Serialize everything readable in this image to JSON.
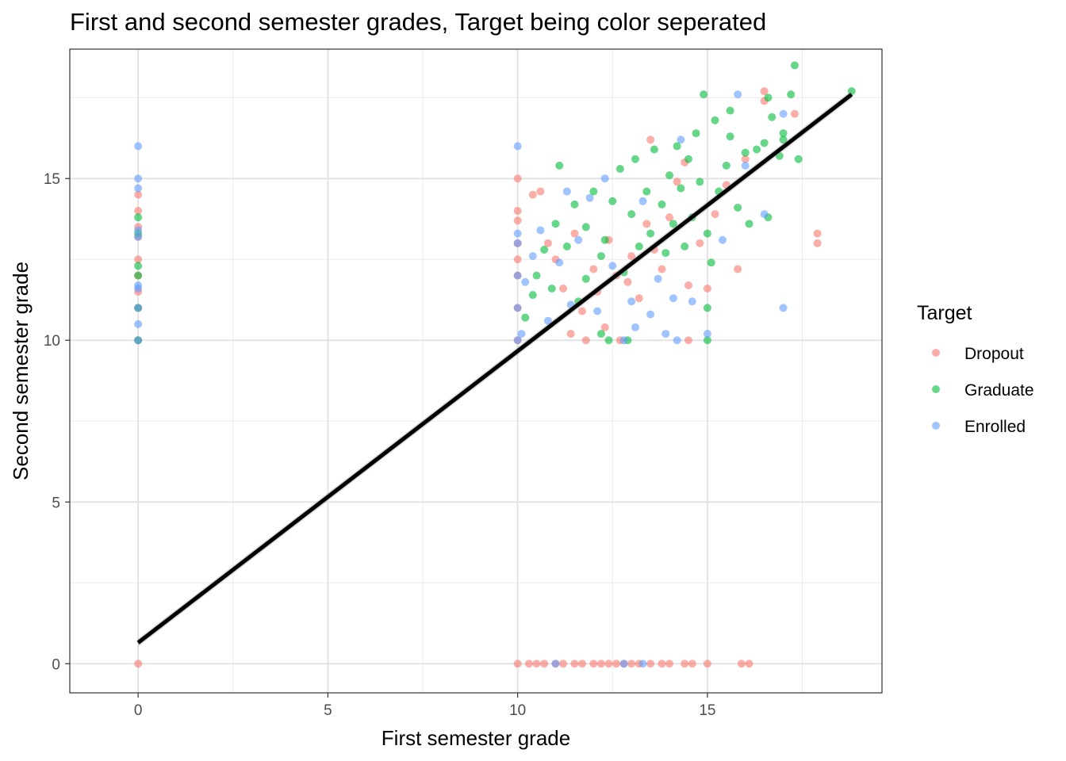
{
  "chart_data": {
    "type": "scatter",
    "title": "First and second semester grades, Target being color seperated",
    "xlabel": "First semester grade",
    "ylabel": "Second semester grade",
    "xlim": [
      -1.8,
      19.6
    ],
    "ylim": [
      -0.9,
      19.0
    ],
    "x_ticks": [
      0,
      5,
      10,
      15
    ],
    "y_ticks": [
      0,
      5,
      10,
      15
    ],
    "grid": true,
    "legend": {
      "title": "Target",
      "position": "right"
    },
    "trend_line": {
      "x": [
        0,
        18.8
      ],
      "y": [
        0.65,
        17.6
      ],
      "color": "#000000"
    },
    "series": [
      {
        "name": "Dropout",
        "color": "#F8766D",
        "points": [
          [
            0,
            0
          ],
          [
            0,
            10
          ],
          [
            0,
            11
          ],
          [
            0,
            11.5
          ],
          [
            0,
            12
          ],
          [
            0,
            12.5
          ],
          [
            0,
            13.2
          ],
          [
            0,
            13.5
          ],
          [
            0,
            14
          ],
          [
            0,
            14.5
          ],
          [
            10,
            0
          ],
          [
            10.3,
            0
          ],
          [
            10.5,
            0
          ],
          [
            10.7,
            0
          ],
          [
            11,
            0
          ],
          [
            11.2,
            0
          ],
          [
            11.5,
            0
          ],
          [
            11.7,
            0
          ],
          [
            12,
            0
          ],
          [
            12.2,
            0
          ],
          [
            12.4,
            0
          ],
          [
            12.6,
            0
          ],
          [
            12.8,
            0
          ],
          [
            13,
            0
          ],
          [
            13.2,
            0
          ],
          [
            13.5,
            0
          ],
          [
            13.8,
            0
          ],
          [
            14,
            0
          ],
          [
            14.4,
            0
          ],
          [
            14.6,
            0
          ],
          [
            15,
            0
          ],
          [
            15.9,
            0
          ],
          [
            16.1,
            0
          ],
          [
            10,
            10
          ],
          [
            10,
            11
          ],
          [
            10,
            12
          ],
          [
            10,
            12.5
          ],
          [
            10,
            13
          ],
          [
            10,
            13.7
          ],
          [
            10,
            14
          ],
          [
            10,
            15
          ],
          [
            10.4,
            14.5
          ],
          [
            10.6,
            14.6
          ],
          [
            10.8,
            13
          ],
          [
            11,
            12.5
          ],
          [
            11.2,
            11.6
          ],
          [
            11.4,
            10.2
          ],
          [
            11.5,
            13.3
          ],
          [
            11.7,
            10.9
          ],
          [
            11.8,
            10
          ],
          [
            12,
            12.2
          ],
          [
            12.1,
            11.5
          ],
          [
            12.3,
            10.4
          ],
          [
            12.4,
            13.1
          ],
          [
            12.6,
            12
          ],
          [
            12.7,
            10
          ],
          [
            12.9,
            11.8
          ],
          [
            13,
            12.6
          ],
          [
            13.2,
            11.3
          ],
          [
            13.4,
            13.6
          ],
          [
            13.5,
            16.2
          ],
          [
            13.6,
            12.8
          ],
          [
            13.8,
            12.2
          ],
          [
            14,
            13.8
          ],
          [
            14.2,
            14.9
          ],
          [
            14.4,
            15.5
          ],
          [
            14.5,
            11.7
          ],
          [
            14.5,
            10
          ],
          [
            14.8,
            13
          ],
          [
            15,
            11.6
          ],
          [
            15.2,
            13.9
          ],
          [
            15.5,
            14.8
          ],
          [
            15.8,
            12.2
          ],
          [
            16,
            15.6
          ],
          [
            16.5,
            17.7
          ],
          [
            16.5,
            17.4
          ],
          [
            17.3,
            17
          ],
          [
            17.9,
            13.3
          ],
          [
            17.9,
            13
          ]
        ]
      },
      {
        "name": "Graduate",
        "color": "#00BA38",
        "points": [
          [
            0,
            11
          ],
          [
            0,
            12
          ],
          [
            0,
            12.3
          ],
          [
            0,
            13.3
          ],
          [
            0,
            13.8
          ],
          [
            0,
            10
          ],
          [
            10.2,
            10.7
          ],
          [
            10.4,
            11.4
          ],
          [
            10.5,
            12
          ],
          [
            10.7,
            12.8
          ],
          [
            10.9,
            11.6
          ],
          [
            11,
            13.6
          ],
          [
            11.1,
            15.4
          ],
          [
            11.3,
            12.9
          ],
          [
            11.5,
            14.2
          ],
          [
            11.6,
            11.2
          ],
          [
            11.8,
            13.5
          ],
          [
            12,
            14.6
          ],
          [
            12.2,
            12.6
          ],
          [
            12.3,
            13.1
          ],
          [
            12.4,
            10
          ],
          [
            12.5,
            14.3
          ],
          [
            12.7,
            15.3
          ],
          [
            12.8,
            12.1
          ],
          [
            13,
            13.9
          ],
          [
            13.1,
            15.6
          ],
          [
            13.2,
            12.9
          ],
          [
            13.4,
            14.6
          ],
          [
            13.5,
            13.3
          ],
          [
            13.6,
            15.9
          ],
          [
            13.8,
            14.2
          ],
          [
            13.9,
            12.7
          ],
          [
            14,
            15.1
          ],
          [
            14.1,
            13.6
          ],
          [
            14.2,
            16
          ],
          [
            14.3,
            14.7
          ],
          [
            14.4,
            12.9
          ],
          [
            14.5,
            15.6
          ],
          [
            14.6,
            13.8
          ],
          [
            14.7,
            16.4
          ],
          [
            14.8,
            14.9
          ],
          [
            14.9,
            17.6
          ],
          [
            15,
            13.3
          ],
          [
            15,
            10
          ],
          [
            15,
            11
          ],
          [
            15.2,
            16.8
          ],
          [
            15.3,
            14.6
          ],
          [
            15.5,
            15.4
          ],
          [
            15.6,
            16.3
          ],
          [
            15.8,
            14.1
          ],
          [
            16,
            15.8
          ],
          [
            16.1,
            13.6
          ],
          [
            16.3,
            15.9
          ],
          [
            16.5,
            16.1
          ],
          [
            16.6,
            13.8
          ],
          [
            16.7,
            16.9
          ],
          [
            16.9,
            15.7
          ],
          [
            17,
            16.4
          ],
          [
            17.2,
            17.6
          ],
          [
            17.4,
            15.6
          ],
          [
            17.3,
            18.5
          ],
          [
            18.8,
            17.7
          ],
          [
            15.6,
            17.1
          ],
          [
            16.6,
            17.5
          ],
          [
            17,
            16.2
          ],
          [
            15.1,
            12.4
          ],
          [
            12.2,
            10.2
          ],
          [
            12.9,
            10
          ],
          [
            11.8,
            11.9
          ]
        ]
      },
      {
        "name": "Enrolled",
        "color": "#619CFF",
        "points": [
          [
            0,
            10
          ],
          [
            0,
            10.5
          ],
          [
            0,
            11
          ],
          [
            0,
            11.6
          ],
          [
            0,
            11.7
          ],
          [
            0,
            13.2
          ],
          [
            0,
            13.4
          ],
          [
            0,
            14.7
          ],
          [
            0,
            15
          ],
          [
            0,
            16
          ],
          [
            10,
            10
          ],
          [
            10,
            11
          ],
          [
            10,
            12
          ],
          [
            10,
            13
          ],
          [
            10,
            13.3
          ],
          [
            10,
            16
          ],
          [
            10.1,
            10.2
          ],
          [
            10.2,
            11.8
          ],
          [
            10.4,
            12.6
          ],
          [
            10.6,
            13.4
          ],
          [
            10.8,
            10.6
          ],
          [
            11.1,
            12.4
          ],
          [
            11.3,
            14.6
          ],
          [
            11.4,
            11.1
          ],
          [
            11.6,
            13.1
          ],
          [
            11.9,
            14.4
          ],
          [
            12.1,
            10.9
          ],
          [
            12.3,
            15
          ],
          [
            12.5,
            12.3
          ],
          [
            12.8,
            10
          ],
          [
            13,
            11.2
          ],
          [
            13.1,
            10.4
          ],
          [
            13.3,
            14.3
          ],
          [
            13.5,
            10.8
          ],
          [
            13.7,
            11.9
          ],
          [
            13.9,
            10.2
          ],
          [
            14.1,
            11.3
          ],
          [
            14.3,
            16.2
          ],
          [
            14.6,
            11.2
          ],
          [
            14.2,
            10
          ],
          [
            15,
            10.2
          ],
          [
            15.4,
            13.1
          ],
          [
            15.8,
            17.6
          ],
          [
            16,
            15.4
          ],
          [
            16.5,
            13.9
          ],
          [
            17,
            17
          ],
          [
            17,
            11
          ],
          [
            12.8,
            0
          ],
          [
            13.3,
            0
          ],
          [
            11,
            0
          ]
        ]
      }
    ]
  }
}
